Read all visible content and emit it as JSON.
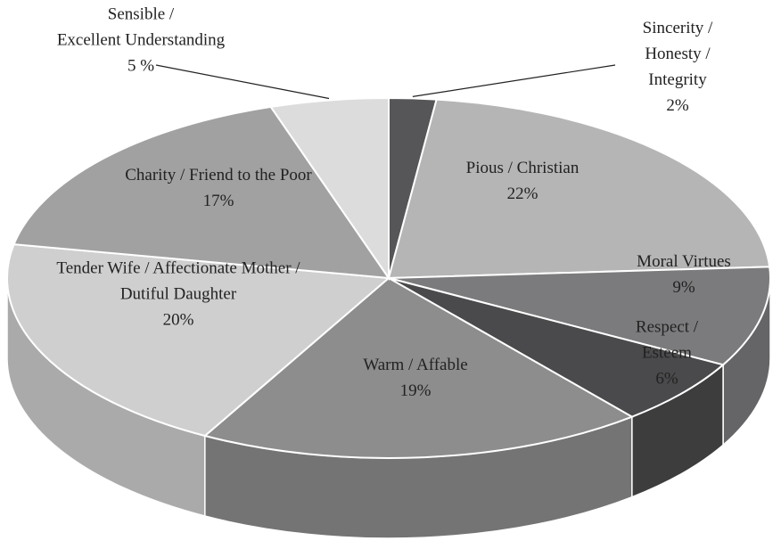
{
  "chart_data": {
    "type": "pie",
    "categories": [
      "Sincerity / Honesty /\nIntegrity",
      "Pious / Christian",
      "Moral Virtues",
      "Respect / Esteem",
      "Warm / Affable",
      "Tender Wife / Affectionate Mother /\nDutiful Daughter",
      "Charity / Friend to the Poor",
      "Sensible /\nExcellent Understanding"
    ],
    "values": [
      2,
      22,
      9,
      6,
      19,
      20,
      17,
      5
    ],
    "value_labels": [
      "2%",
      "22%",
      "9%",
      "6%",
      "19%",
      "20%",
      "17%",
      "5 %"
    ],
    "colors": [
      "#565658",
      "#b5b5b5",
      "#7b7b7d",
      "#4a4a4c",
      "#8d8d8d",
      "#cfcfcf",
      "#a1a1a1",
      "#dcdcdc"
    ]
  }
}
